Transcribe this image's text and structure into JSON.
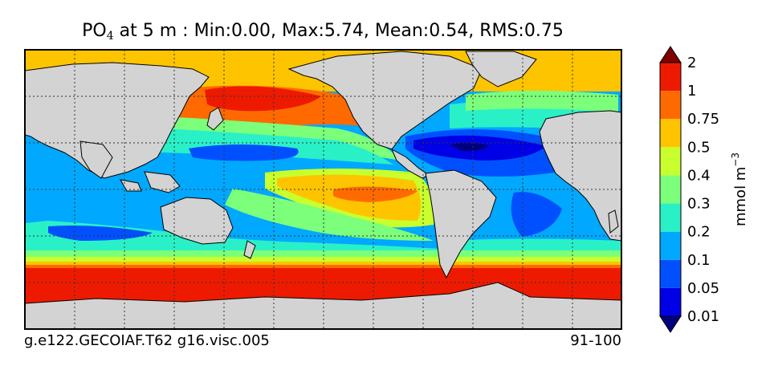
{
  "chart_data": {
    "type": "heatmap",
    "title": {
      "variable": "PO",
      "subscript": "4",
      "rest": "  at 5 m : Min:0.00, Max:5.74, Mean:0.54, RMS:0.75"
    },
    "colorbar": {
      "levels": [
        "0.01",
        "0.05",
        "0.1",
        "0.2",
        "0.3",
        "0.4",
        "0.5",
        "0.75",
        "1",
        "2"
      ],
      "colors": [
        "#00007f",
        "#0000e6",
        "#0050ff",
        "#00a8ff",
        "#2af0c8",
        "#7cff7a",
        "#c8ff2c",
        "#ffc400",
        "#ff6a00",
        "#ee1a00",
        "#7f0000"
      ],
      "unit_label": "mmol m",
      "unit_exponent": "−3",
      "extend": "both"
    },
    "map": {
      "land_color": "#d3d3d3",
      "gridlines": "dotted",
      "grid_lon_count": 12,
      "grid_lat_count": 6
    },
    "footer": {
      "case_name": "g.e122.GECOIAF.T62 g16.visc.005",
      "years": "91-100"
    }
  }
}
